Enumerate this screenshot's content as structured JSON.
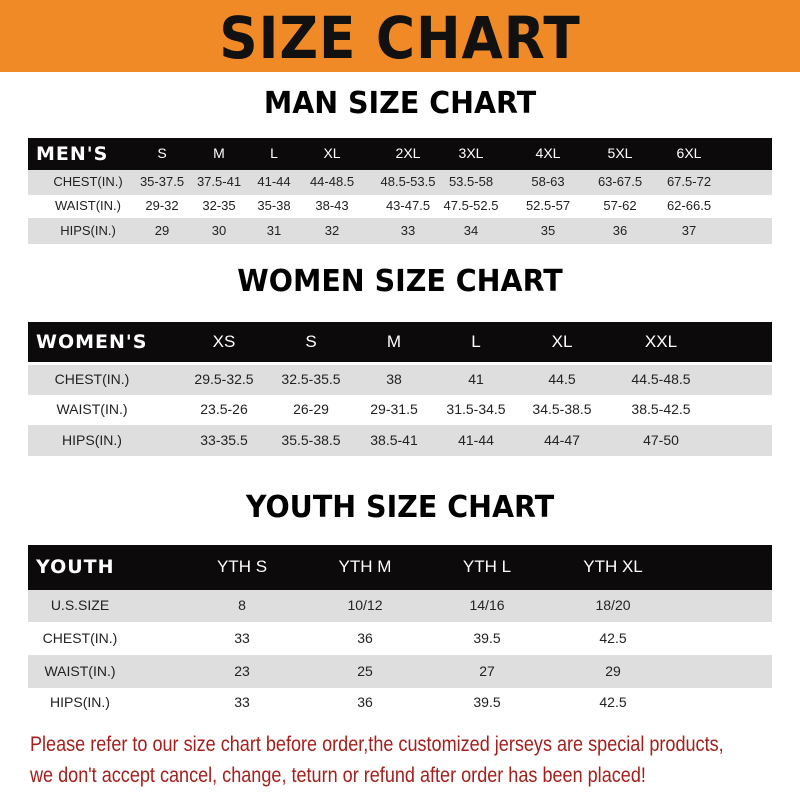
{
  "banner": {
    "title": "SIZE CHART",
    "color": "#ef8a26"
  },
  "men": {
    "title": "MAN SIZE CHART",
    "header": "MEN'S",
    "sizes": [
      "S",
      "M",
      "L",
      "XL",
      "2XL",
      "3XL",
      "4XL",
      "5XL",
      "6XL"
    ],
    "rows": [
      {
        "label": "CHEST(IN.)",
        "values": [
          "35-37.5",
          "37.5-41",
          "41-44",
          "44-48.5",
          "48.5-53.5",
          "53.5-58",
          "58-63",
          "63-67.5",
          "67.5-72"
        ]
      },
      {
        "label": "WAIST(IN.)",
        "values": [
          "29-32",
          "32-35",
          "35-38",
          "38-43",
          "43-47.5",
          "47.5-52.5",
          "52.5-57",
          "57-62",
          "62-66.5"
        ]
      },
      {
        "label": "HIPS(IN.)",
        "values": [
          "29",
          "30",
          "31",
          "32",
          "33",
          "34",
          "35",
          "36",
          "37"
        ]
      }
    ]
  },
  "women": {
    "title": "WOMEN SIZE CHART",
    "header": "WOMEN'S",
    "sizes": [
      "XS",
      "S",
      "M",
      "L",
      "XL",
      "XXL"
    ],
    "rows": [
      {
        "label": "CHEST(IN.)",
        "values": [
          "29.5-32.5",
          "32.5-35.5",
          "38",
          "41",
          "44.5",
          "44.5-48.5"
        ]
      },
      {
        "label": "WAIST(IN.)",
        "values": [
          "23.5-26",
          "26-29",
          "29-31.5",
          "31.5-34.5",
          "34.5-38.5",
          "38.5-42.5"
        ]
      },
      {
        "label": "HIPS(IN.)",
        "values": [
          "33-35.5",
          "35.5-38.5",
          "38.5-41",
          "41-44",
          "44-47",
          "47-50"
        ]
      }
    ]
  },
  "youth": {
    "title": "YOUTH SIZE CHART",
    "header": "YOUTH",
    "sizes": [
      "YTH S",
      "YTH M",
      "YTH L",
      "YTH XL"
    ],
    "rows": [
      {
        "label": "U.S.SIZE",
        "values": [
          "8",
          "10/12",
          "14/16",
          "18/20"
        ]
      },
      {
        "label": "CHEST(IN.)",
        "values": [
          "33",
          "36",
          "39.5",
          "42.5"
        ]
      },
      {
        "label": "WAIST(IN.)",
        "values": [
          "23",
          "25",
          "27",
          "29"
        ]
      },
      {
        "label": "HIPS(IN.)",
        "values": [
          "33",
          "36",
          "39.5",
          "42.5"
        ]
      }
    ]
  },
  "notice": {
    "line1": "Please refer to our size chart before order,the customized jerseys are special products,",
    "line2": "we don't accept cancel, change, teturn or refund after order has been placed!",
    "color": "#a3201d"
  }
}
